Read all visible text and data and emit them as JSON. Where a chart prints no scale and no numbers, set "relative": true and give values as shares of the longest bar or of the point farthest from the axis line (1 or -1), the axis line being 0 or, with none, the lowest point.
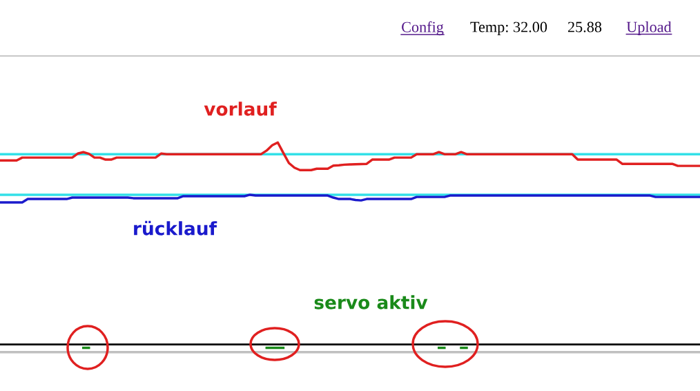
{
  "chart_data": {
    "type": "line",
    "relative": true,
    "annotations": [
      "Config",
      "Temp: 32.00",
      "25.88",
      "Upload"
    ],
    "categories": [
      null,
      null,
      null,
      null,
      null,
      null,
      null,
      null,
      null,
      null,
      null,
      null,
      null,
      null,
      null,
      null,
      null,
      null,
      null,
      null,
      null,
      null,
      null,
      null,
      null,
      null,
      null,
      null,
      null,
      null,
      null,
      null,
      null,
      null,
      null,
      null,
      null,
      null,
      null,
      null,
      null,
      null,
      null,
      null,
      null,
      null,
      null,
      null,
      null,
      null,
      null,
      null,
      null,
      null,
      null,
      null,
      null,
      null,
      null,
      null,
      null,
      null,
      null,
      null,
      null,
      null,
      null,
      null,
      null,
      null,
      null,
      null,
      null,
      null,
      null,
      null,
      null,
      null,
      null,
      null,
      null,
      null,
      null,
      null,
      null,
      null,
      null,
      null,
      null,
      null,
      null,
      null,
      null,
      null,
      null,
      null,
      null,
      null,
      null,
      null,
      null,
      null,
      null,
      null,
      null,
      null,
      null,
      null,
      null,
      null,
      null,
      null,
      null,
      null,
      null,
      null,
      null,
      null,
      null,
      null,
      null,
      null,
      null,
      null,
      null,
      null,
      null
    ],
    "series": [
      {
        "name": "vorlauf",
        "color": "#e02020",
        "values": [
          0.911,
          0.911,
          0.911,
          0.911,
          0.925,
          0.925,
          0.925,
          0.925,
          0.925,
          0.925,
          0.925,
          0.925,
          0.925,
          0.925,
          0.945,
          0.952,
          0.944,
          0.925,
          0.925,
          0.915,
          0.915,
          0.925,
          0.925,
          0.925,
          0.925,
          0.925,
          0.925,
          0.925,
          0.925,
          0.945,
          0.942,
          0.942,
          0.942,
          0.942,
          0.942,
          0.942,
          0.942,
          0.942,
          0.942,
          0.942,
          0.942,
          0.942,
          0.942,
          0.942,
          0.942,
          0.942,
          0.942,
          0.942,
          0.96,
          0.986,
          1.0,
          0.948,
          0.898,
          0.875,
          0.863,
          0.863,
          0.863,
          0.87,
          0.87,
          0.87,
          0.885,
          0.887,
          0.89,
          0.891,
          0.892,
          0.893,
          0.894,
          0.915,
          0.915,
          0.915,
          0.915,
          0.925,
          0.925,
          0.925,
          0.925,
          0.942,
          0.942,
          0.942,
          0.942,
          0.952,
          0.942,
          0.942,
          0.942,
          0.952,
          0.942,
          0.942,
          0.942,
          0.942,
          0.942,
          0.942,
          0.942,
          0.942,
          0.942,
          0.942,
          0.942,
          0.942,
          0.942,
          0.942,
          0.942,
          0.942,
          0.942,
          0.942,
          0.942,
          0.942,
          0.915,
          0.915,
          0.915,
          0.915,
          0.915,
          0.915,
          0.915,
          0.915,
          0.894,
          0.894,
          0.894,
          0.894,
          0.894,
          0.894,
          0.894,
          0.894,
          0.894,
          0.894,
          0.884,
          0.884,
          0.884,
          0.884,
          0.884
        ]
      },
      {
        "name": "rücklauf",
        "color": "#1a1acc",
        "values": [
          0.703,
          0.703,
          0.703,
          0.703,
          0.703,
          0.72,
          0.72,
          0.72,
          0.72,
          0.72,
          0.72,
          0.72,
          0.72,
          0.727,
          0.727,
          0.727,
          0.727,
          0.727,
          0.727,
          0.727,
          0.727,
          0.727,
          0.727,
          0.727,
          0.724,
          0.724,
          0.724,
          0.724,
          0.724,
          0.724,
          0.724,
          0.724,
          0.724,
          0.734,
          0.734,
          0.734,
          0.734,
          0.734,
          0.734,
          0.734,
          0.734,
          0.734,
          0.734,
          0.734,
          0.734,
          0.741,
          0.737,
          0.737,
          0.737,
          0.737,
          0.737,
          0.737,
          0.737,
          0.737,
          0.737,
          0.737,
          0.737,
          0.737,
          0.737,
          0.737,
          0.727,
          0.72,
          0.72,
          0.72,
          0.715,
          0.713,
          0.72,
          0.72,
          0.72,
          0.72,
          0.72,
          0.72,
          0.72,
          0.72,
          0.72,
          0.73,
          0.73,
          0.73,
          0.73,
          0.73,
          0.73,
          0.737,
          0.737,
          0.737,
          0.737,
          0.737,
          0.737,
          0.737,
          0.737,
          0.737,
          0.737,
          0.737,
          0.737,
          0.737,
          0.737,
          0.737,
          0.737,
          0.737,
          0.737,
          0.737,
          0.737,
          0.737,
          0.737,
          0.737,
          0.737,
          0.737,
          0.737,
          0.737,
          0.737,
          0.737,
          0.737,
          0.737,
          0.737,
          0.737,
          0.737,
          0.737,
          0.737,
          0.737,
          0.73,
          0.73,
          0.73,
          0.73,
          0.73,
          0.73,
          0.73,
          0.73,
          0.73
        ]
      },
      {
        "name": "servo aktiv",
        "color": "#1a8a1a",
        "values": [
          null,
          null,
          null,
          null,
          null,
          null,
          null,
          null,
          null,
          null,
          null,
          null,
          null,
          null,
          null,
          -0.017,
          -0.017,
          null,
          null,
          null,
          null,
          null,
          null,
          null,
          null,
          null,
          null,
          null,
          null,
          null,
          null,
          null,
          null,
          null,
          null,
          null,
          null,
          null,
          null,
          null,
          null,
          null,
          null,
          null,
          null,
          null,
          null,
          null,
          -0.017,
          -0.017,
          -0.017,
          -0.017,
          null,
          null,
          null,
          null,
          null,
          null,
          null,
          null,
          null,
          null,
          null,
          null,
          null,
          null,
          null,
          null,
          null,
          null,
          null,
          null,
          null,
          null,
          null,
          null,
          null,
          null,
          null,
          -0.017,
          -0.017,
          null,
          null,
          -0.017,
          -0.017,
          null,
          null,
          null,
          null,
          null,
          null,
          null,
          null,
          null,
          null,
          null,
          null,
          null,
          null,
          null,
          null,
          null,
          null,
          null,
          null,
          null,
          null,
          null,
          null,
          null,
          null,
          null,
          null,
          null,
          null,
          null,
          null,
          null,
          null,
          null,
          null,
          null,
          null,
          null,
          null,
          null,
          null
        ]
      }
    ],
    "ref_lines": [
      {
        "axis": "y",
        "value": 0.942,
        "color": "#33e0e8"
      },
      {
        "axis": "y",
        "value": 0.741,
        "color": "#33e0e8"
      },
      {
        "axis": "y",
        "value": 0,
        "color": "#000000"
      },
      {
        "axis": "y",
        "value": -0.038,
        "color": "#c0c0c0"
      }
    ]
  }
}
